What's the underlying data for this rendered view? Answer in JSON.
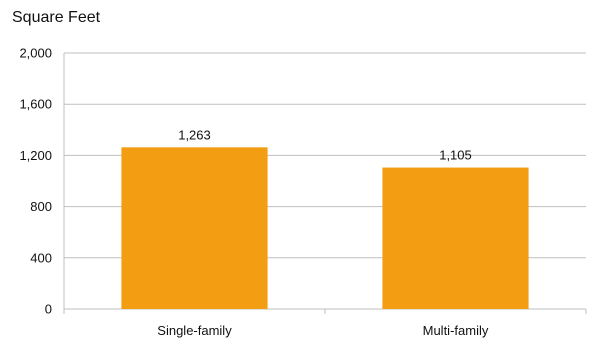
{
  "chart_data": {
    "type": "bar",
    "title": "Square Feet",
    "categories": [
      "Single-family",
      "Multi-family"
    ],
    "values": [
      1263,
      1105
    ],
    "data_labels": [
      "1,263",
      "1,105"
    ],
    "xlabel": "",
    "ylabel": "",
    "ylim": [
      0,
      2000
    ],
    "yticks": [
      0,
      400,
      800,
      1200,
      1600,
      2000
    ],
    "ytick_labels": [
      "0",
      "400",
      "800",
      "1,200",
      "1,600",
      "2,000"
    ],
    "grid": true,
    "legend": "none",
    "bar_color": "#F29D12",
    "grid_color": "#BFBFBF"
  }
}
